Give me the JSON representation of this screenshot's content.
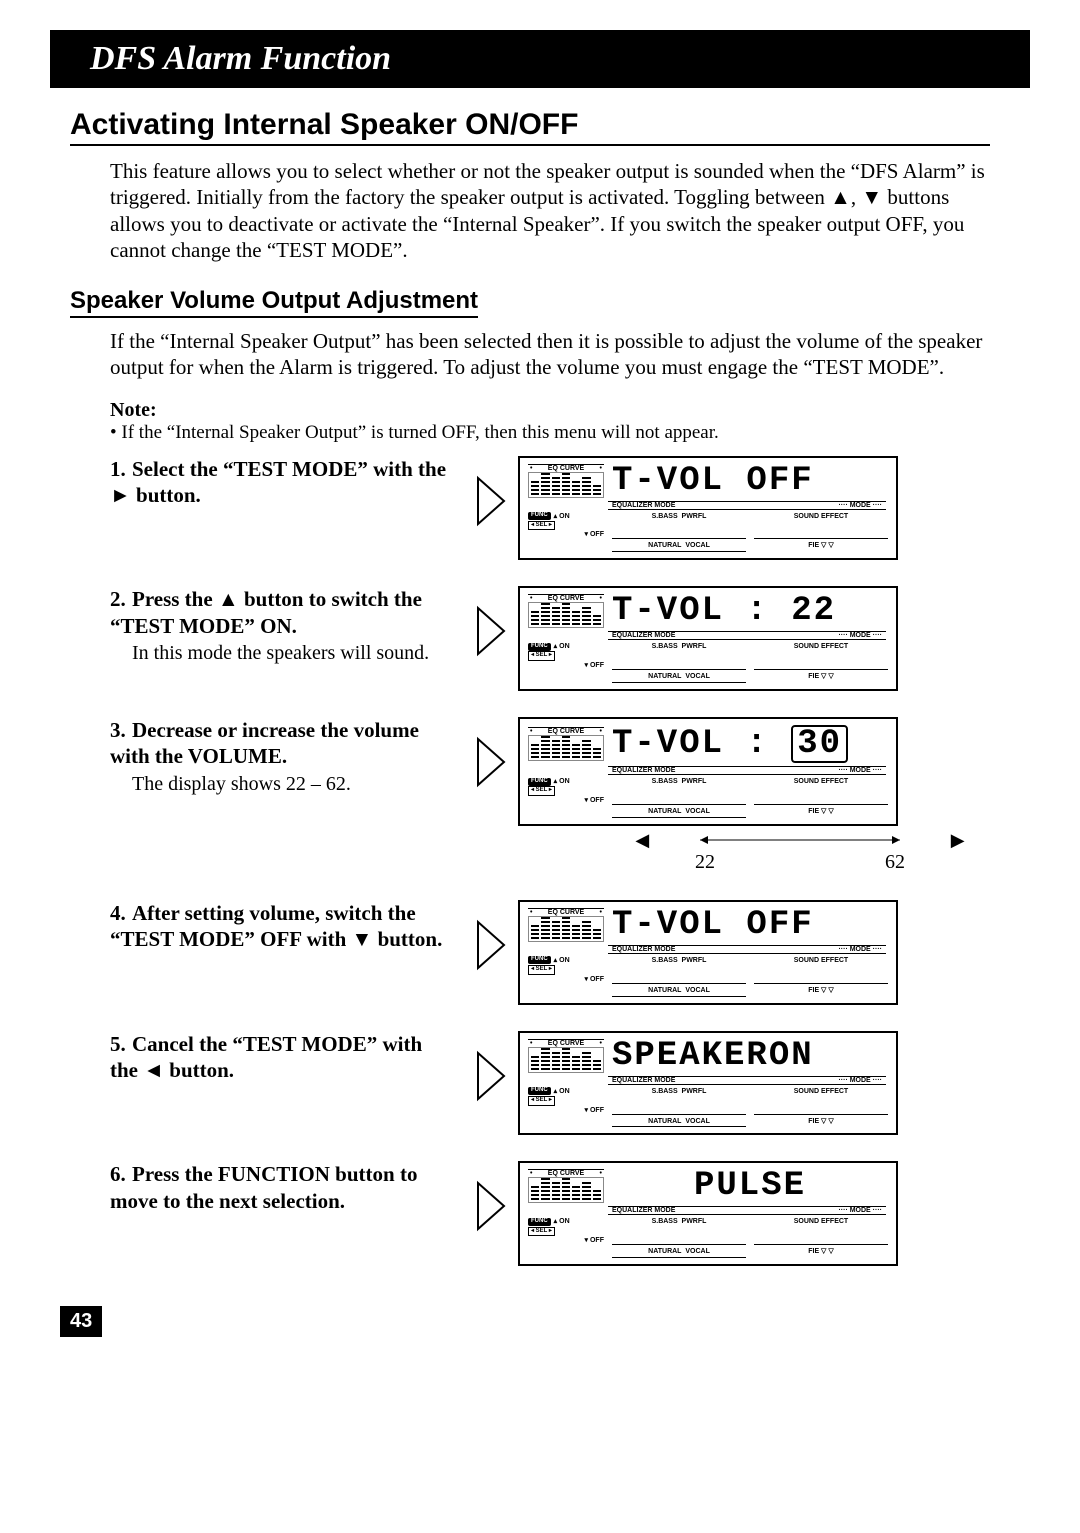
{
  "banner": "DFS Alarm Function",
  "h1": "Activating Internal Speaker ON/OFF",
  "para1": "This feature allows you to select whether or not the speaker output is sounded when the “DFS Alarm” is triggered. Initially from the factory the speaker output is activated. Toggling between ▲, ▼ buttons allows you to deactivate or activate the “Internal Speaker”. If you switch the speaker output OFF, you cannot change the “TEST MODE”.",
  "h2": "Speaker Volume Output Adjustment",
  "para2": "If the “Internal Speaker Output” has been selected then it is possible to adjust the volume of the speaker output for when the Alarm is triggered. To adjust the volume you must engage the “TEST MODE”.",
  "noteHead": "Note:",
  "noteBody": "• If the “Internal Speaker Output” is turned OFF, then this menu will not appear.",
  "steps": [
    {
      "num": "1.",
      "title": "Select the “TEST MODE” with the ► button.",
      "sub": "",
      "lcd": "T-VOL OFF"
    },
    {
      "num": "2.",
      "title": "Press the ▲ button to switch the “TEST MODE” ON.",
      "sub": "In this mode the speakers will sound.",
      "lcd": "T-VOL : 22"
    },
    {
      "num": "3.",
      "title": "Decrease or increase the vol­ume with the VOLUME.",
      "sub": "The display shows 22 – 62.",
      "lcd": "T-VOL : 30",
      "boxed": true,
      "range": true
    },
    {
      "num": "4.",
      "title": "After setting volume, switch the “TEST MODE” OFF with ▼ button.",
      "sub": "",
      "lcd": "T-VOL OFF"
    },
    {
      "num": "5.",
      "title": "Cancel the “TEST MODE” with the ◄ button.",
      "sub": "",
      "lcd": "SPEAKERON"
    },
    {
      "num": "6.",
      "title": "Press the FUNCTION button to move to the next selection.",
      "sub": "",
      "lcd": "PULSE",
      "center": true
    }
  ],
  "rangeMin": "22",
  "rangeMax": "62",
  "lcdLabels": {
    "eq": "EQ CURVE",
    "equalizer": "EQUALIZER MODE",
    "mode": "···· MODE ····",
    "sbass": "S.BASS",
    "pwrfl": "PWRFL",
    "sound": "SOUND EFFECT",
    "natural": "NATURAL",
    "vocal": "VOCAL",
    "fie": "FIE ▽ ▽",
    "func": "FUNC",
    "on": "ON",
    "sel": "◂ SEL ▸",
    "off": "OFF"
  },
  "pageNum": "43"
}
